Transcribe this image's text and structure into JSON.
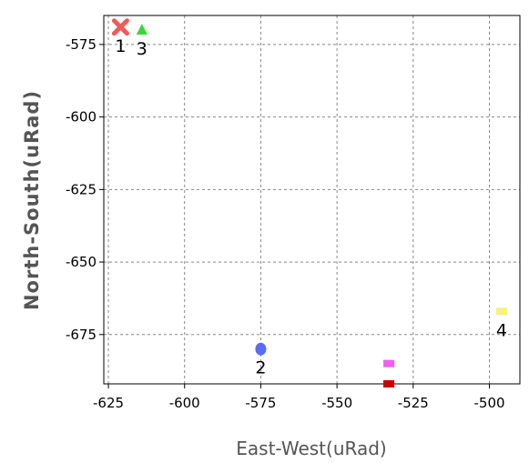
{
  "chart_data": {
    "type": "scatter",
    "xlabel": "East-West(uRad)",
    "ylabel": "North-South(uRad)",
    "xlim": [
      -626.5,
      -490
    ],
    "ylim": [
      -692,
      -565
    ],
    "x_ticks": [
      -625,
      -600,
      -575,
      -550,
      -525,
      -500
    ],
    "y_ticks": [
      -575,
      -600,
      -625,
      -650,
      -675
    ],
    "grid": true,
    "points": [
      {
        "label": "1",
        "x": -621,
        "y": -569,
        "marker": "x",
        "color": "#f15a5a"
      },
      {
        "label": "3",
        "x": -614,
        "y": -570,
        "marker": "triangle",
        "color": "#39d839"
      },
      {
        "label": "2",
        "x": -575,
        "y": -680,
        "marker": "circle",
        "color": "#5a6cf5"
      },
      {
        "label": "",
        "x": -533,
        "y": -685,
        "marker": "square",
        "color": "#f25ef2"
      },
      {
        "label": "",
        "x": -533,
        "y": -692,
        "marker": "square",
        "color": "#cc0000"
      },
      {
        "label": "4",
        "x": -496,
        "y": -667,
        "marker": "square",
        "color": "#f7f27a"
      }
    ]
  }
}
